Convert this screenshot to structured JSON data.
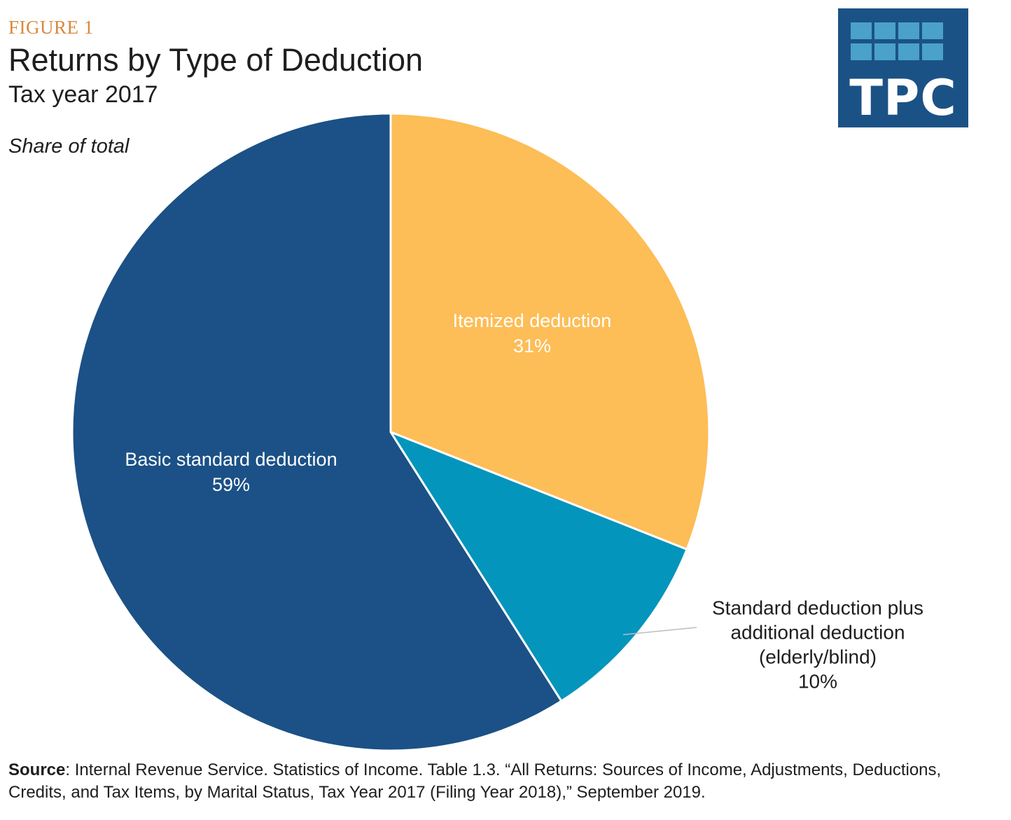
{
  "figure_label": "FIGURE 1",
  "colors": {
    "basic": "#1b5186",
    "itemized": "#fdbd57",
    "elderly": "#0395bc",
    "label_on_slice": "#ffffff",
    "label_outside": "#1e1e1e"
  },
  "logo": {
    "text": "TPC"
  },
  "chart_data": {
    "type": "pie",
    "title": "Returns by Type of Deduction",
    "subtitle": "Tax year 2017",
    "unit_label": "Share of total",
    "slices": [
      {
        "name": "Itemized deduction",
        "value": 31,
        "value_label": "31%",
        "color": "#fdbd57"
      },
      {
        "name": "Standard deduction plus additional deduction (elderly/blind)",
        "value": 10,
        "value_label": "10%",
        "color": "#0395bc"
      },
      {
        "name": "Basic standard deduction",
        "value": 59,
        "value_label": "59%",
        "color": "#1b5186"
      }
    ],
    "slice_labels": [
      {
        "lines": [
          "Itemized deduction",
          "31%"
        ]
      },
      {
        "lines": [
          "Standard deduction plus",
          "additional deduction",
          "(elderly/blind)",
          "10%"
        ]
      },
      {
        "lines": [
          "Basic standard deduction",
          "59%"
        ]
      }
    ]
  },
  "source": {
    "label": "Source",
    "text": ": Internal Revenue Service. Statistics of Income. Table 1.3. “All Returns: Sources of Income, Adjustments, Deductions, Credits, and Tax Items, by Marital Status, Tax Year 2017 (Filing Year 2018),” September 2019."
  }
}
